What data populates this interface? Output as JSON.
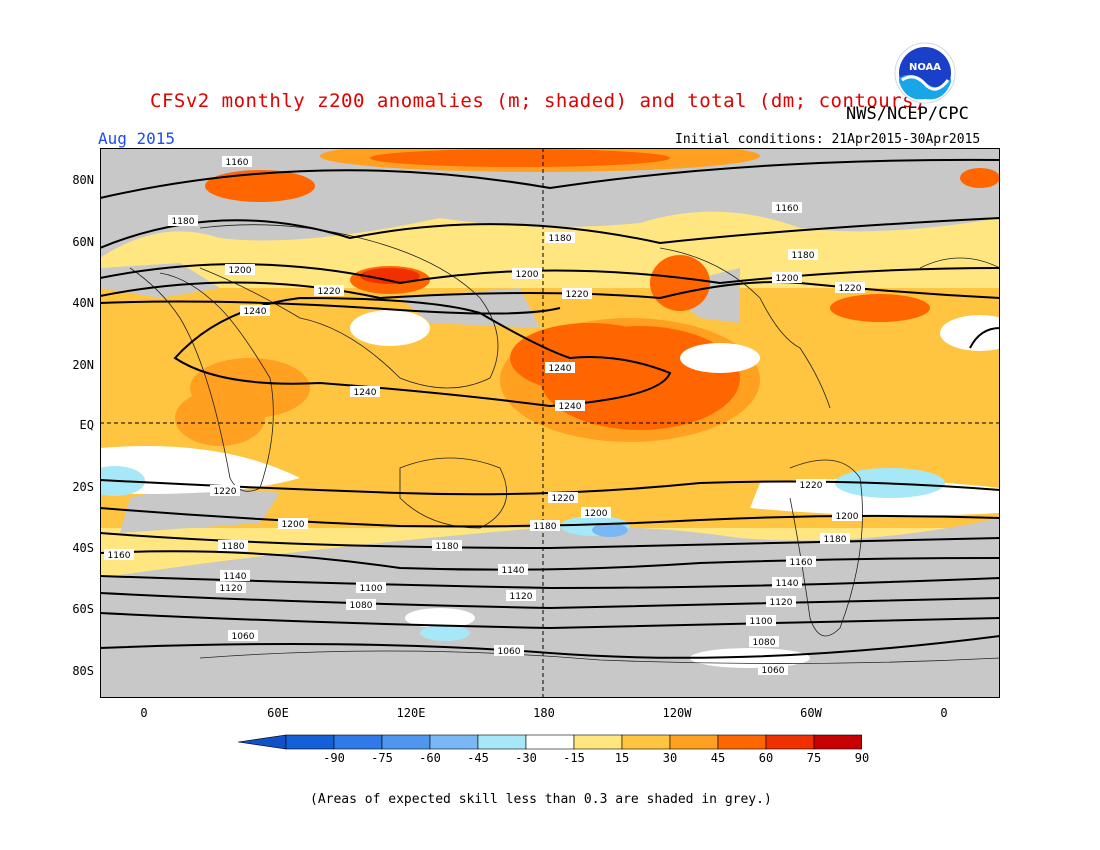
{
  "title": "CFSv2 monthly z200 anomalies (m; shaded) and total (dm; contours)",
  "agency": "NWS/NCEP/CPC",
  "logo_text": "NOAA",
  "month": "Aug 2015",
  "initial_conditions": "Initial conditions: 21Apr2015-30Apr2015",
  "lat_labels": [
    "80N",
    "60N",
    "40N",
    "20N",
    "EQ",
    "20S",
    "40S",
    "60S",
    "80S"
  ],
  "lon_labels": [
    "0",
    "60E",
    "120E",
    "180",
    "120W",
    "60W",
    "0"
  ],
  "colorbar": {
    "labels": [
      "-90",
      "-75",
      "-60",
      "-45",
      "-30",
      "-15",
      "15",
      "30",
      "45",
      "60",
      "75",
      "90"
    ],
    "colors": [
      "#1560d8",
      "#2f7ae8",
      "#4f96ee",
      "#7ab8f5",
      "#a6e8f7",
      "#ffffff",
      "#ffe680",
      "#ffc440",
      "#ffa020",
      "#ff6600",
      "#f03000",
      "#c80000"
    ],
    "arrow_low_color": "#1050c8",
    "arrow_high_color": "#b00000"
  },
  "contour_labels": {
    "c1060": "1060",
    "c1080": "1080",
    "c1100": "1100",
    "c1120": "1120",
    "c1140": "1140",
    "c1160": "1160",
    "c1180": "1180",
    "c1200": "1200",
    "c1220": "1220",
    "c1240": "1240"
  },
  "note": "(Areas of expected skill less than 0.3 are shaded in grey.)",
  "colors": {
    "title": "#e00000",
    "month": "#1a4cff",
    "skill_mask_grey": "#c8c8c8"
  }
}
